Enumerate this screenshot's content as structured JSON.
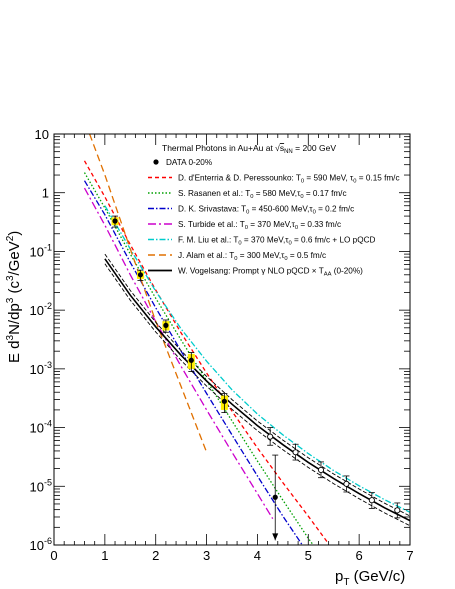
{
  "chart_data": {
    "type": "scatter",
    "title": "Thermal Photons in Au+Au at √s_NN = 200 GeV",
    "title_parts": {
      "main": "Thermal Photons in Au+Au at ",
      "sqrt_s": "s",
      "sub": "NN",
      "rest": " = 200 GeV"
    },
    "xlabel": {
      "p": "p",
      "sub": "T",
      "unit": " (GeV/c)"
    },
    "ylabel": {
      "text": "E d³N/dp³ (c³/GeV²)"
    },
    "x_scale": "linear",
    "y_scale": "log",
    "xlim": [
      0,
      7
    ],
    "ylim": [
      1e-06,
      10
    ],
    "x_ticks": [
      "0",
      "1",
      "2",
      "3",
      "4",
      "5",
      "6",
      "7"
    ],
    "y_ticks": [
      {
        "base": "10",
        "exp": "-6"
      },
      {
        "base": "10",
        "exp": "-5"
      },
      {
        "base": "10",
        "exp": "-4"
      },
      {
        "base": "10",
        "exp": "-3"
      },
      {
        "base": "10",
        "exp": "-2"
      },
      {
        "base": "10",
        "exp": "-1"
      },
      {
        "base": "1",
        "exp": ""
      },
      {
        "base": "10",
        "exp": ""
      }
    ],
    "legend_position": "top-right",
    "data_series": {
      "name": "DATA 0-20%",
      "filled_points": [
        {
          "x": 1.2,
          "y": 0.33,
          "err_lo": 0.26,
          "err_hi": 0.4,
          "sys_lo": 0.28,
          "sys_hi": 0.38
        },
        {
          "x": 1.7,
          "y": 0.04,
          "err_lo": 0.032,
          "err_hi": 0.048,
          "sys_lo": 0.034,
          "sys_hi": 0.046
        },
        {
          "x": 2.2,
          "y": 0.0055,
          "err_lo": 0.0042,
          "err_hi": 0.0068,
          "sys_lo": 0.0045,
          "sys_hi": 0.0065
        },
        {
          "x": 2.7,
          "y": 0.0014,
          "err_lo": 0.0009,
          "err_hi": 0.0019,
          "sys_lo": 0.001,
          "sys_hi": 0.0018
        },
        {
          "x": 3.35,
          "y": 0.00028,
          "err_lo": 0.00018,
          "err_hi": 0.00038,
          "sys_lo": 0.0002,
          "sys_hi": 0.00035
        },
        {
          "x": 4.35,
          "y": 6.5e-06,
          "err_lo": 1.2e-06,
          "err_hi": 3.4e-05,
          "upper_limit": true
        }
      ],
      "open_points": [
        {
          "x": 4.25,
          "y": 7e-05,
          "err_lo": 5e-05,
          "err_hi": 0.0001
        },
        {
          "x": 4.75,
          "y": 3.8e-05,
          "err_lo": 2.8e-05,
          "err_hi": 5.2e-05
        },
        {
          "x": 5.25,
          "y": 1.9e-05,
          "err_lo": 1.4e-05,
          "err_hi": 2.6e-05
        },
        {
          "x": 5.75,
          "y": 1.1e-05,
          "err_lo": 8e-06,
          "err_hi": 1.5e-05
        },
        {
          "x": 6.25,
          "y": 5.8e-06,
          "err_lo": 4.2e-06,
          "err_hi": 7.8e-06
        },
        {
          "x": 6.75,
          "y": 3.9e-06,
          "err_lo": 2.9e-06,
          "err_hi": 5.2e-06
        }
      ]
    },
    "series": [
      {
        "name": "D. d'Enterria & D. Peressounko: T₀ = 590 MeV, τ₀ = 0.15 fm/c",
        "legend": {
          "a": "D. d'Enterria & D. Peressounko: T",
          "s": "0",
          "b": " = 590 MeV, τ",
          "s2": "0",
          "c": " = 0.15 fm/c"
        },
        "color": "#ff0000",
        "style": "dash-fine",
        "x": [
          0.6,
          1.0,
          1.5,
          2.0,
          2.5,
          3.0,
          3.5,
          4.0,
          4.5,
          5.0,
          5.4
        ],
        "y": [
          3.5,
          0.85,
          0.13,
          0.022,
          0.0041,
          0.00085,
          0.00019,
          4.5e-05,
          1.15e-05,
          3.1e-06,
          1.05e-06
        ]
      },
      {
        "name": "S. Rasanen et al.: T₀ = 580 MeV, τ₀ = 0.17 fm/c",
        "legend": {
          "a": "S. Rasanen et al.: T",
          "s": "0",
          "b": " = 580 MeV,τ",
          "s2": "0",
          "c": " = 0.17 fm/c"
        },
        "color": "#00a000",
        "style": "dot",
        "x": [
          0.6,
          1.0,
          1.5,
          2.0,
          2.5,
          3.0,
          3.5,
          4.0,
          4.5,
          5.0,
          5.2
        ],
        "y": [
          2.2,
          0.55,
          0.09,
          0.016,
          0.0031,
          0.00063,
          0.00013,
          2.7e-05,
          5.8e-06,
          1.3e-06,
          7.5e-07
        ]
      },
      {
        "name": "D. K. Srivastava: T₀ = 450-600 MeV, τ₀ = 0.2 fm/c",
        "legend": {
          "a": "D. K. Srivastava: T",
          "s": "0",
          "b": " = 450-600 MeV,τ",
          "s2": "0",
          "c": " = 0.2 fm/c"
        },
        "color": "#0000cc",
        "style": "dashdot",
        "x": [
          0.6,
          1.0,
          1.5,
          2.0,
          2.5,
          3.0,
          3.5,
          4.0,
          4.5,
          4.9
        ],
        "y": [
          1.6,
          0.42,
          0.065,
          0.011,
          0.002,
          0.00038,
          7.5e-05,
          1.5e-05,
          3.1e-06,
          9.5e-07
        ]
      },
      {
        "name": "S. Turbide et al.: T₀ = 370 MeV, τ₀ = 0.33 fm/c",
        "legend": {
          "a": "S. Turbide et al.: T",
          "s": "0",
          "b": " = 370 MeV,τ",
          "s2": "0",
          "c": " = 0.33 fm/c"
        },
        "color": "#cc00cc",
        "style": "dashdot-long",
        "x": [
          0.6,
          1.0,
          1.5,
          2.0,
          2.5,
          3.0,
          3.5,
          4.0,
          4.3
        ],
        "y": [
          1.2,
          0.28,
          0.04,
          0.0064,
          0.0011,
          0.0002,
          3.8e-05,
          7.5e-06,
          2.8e-06
        ]
      },
      {
        "name": "F. M. Liu et al.: T₀ = 370 MeV, τ₀ = 0.6 fm/c + LO pQCD",
        "legend": {
          "a": "F. M. Liu et al.: T",
          "s": "0",
          "b": " = 370 MeV,τ",
          "s2": "0",
          "c": " = 0.6 fm/c + LO pQCD"
        },
        "color": "#00cccc",
        "style": "dashdot",
        "x": [
          1.0,
          1.5,
          2.0,
          2.5,
          3.0,
          3.5,
          4.0,
          4.5,
          5.0,
          5.5,
          6.0,
          6.5,
          7.0
        ],
        "y": [
          0.6,
          0.11,
          0.021,
          0.0048,
          0.00135,
          0.00044,
          0.00017,
          7.5e-05,
          3.6e-05,
          1.85e-05,
          1.02e-05,
          5.9e-06,
          3.6e-06
        ]
      },
      {
        "name": "J. Alam et al.: T₀ = 300 MeV, τ₀ = 0.5 fm/c",
        "legend": {
          "a": "J. Alam et al.: T",
          "s": "0",
          "b": " = 300 MeV,τ",
          "s2": "0",
          "c": " = 0.5 fm/c"
        },
        "color": "#e07000",
        "style": "dash",
        "x": [
          0.7,
          1.0,
          1.5,
          2.0,
          2.5,
          3.0
        ],
        "y": [
          10,
          2.0,
          0.11,
          0.0065,
          0.0005,
          3.8e-05
        ]
      },
      {
        "name": "W. Vogelsang: Prompt γ NLO pQCD × T_AA (0-20%)",
        "legend": {
          "a": "W. Vogelsang: Prompt γ NLO pQCD × T",
          "s": "AA",
          "b": " (0-20%)",
          "s2": "",
          "c": ""
        },
        "color": "#000000",
        "style": "solid",
        "x": [
          1.0,
          1.5,
          2.0,
          2.5,
          3.0,
          3.5,
          4.0,
          4.5,
          5.0,
          5.5,
          6.0,
          6.5,
          7.0
        ],
        "y": [
          0.075,
          0.018,
          0.0052,
          0.0017,
          0.00062,
          0.00025,
          0.000108,
          5.1e-05,
          2.55e-05,
          1.35e-05,
          7.5e-06,
          4.3e-06,
          2.6e-06
        ],
        "band_factor": [
          0.82,
          1.2
        ]
      }
    ]
  }
}
